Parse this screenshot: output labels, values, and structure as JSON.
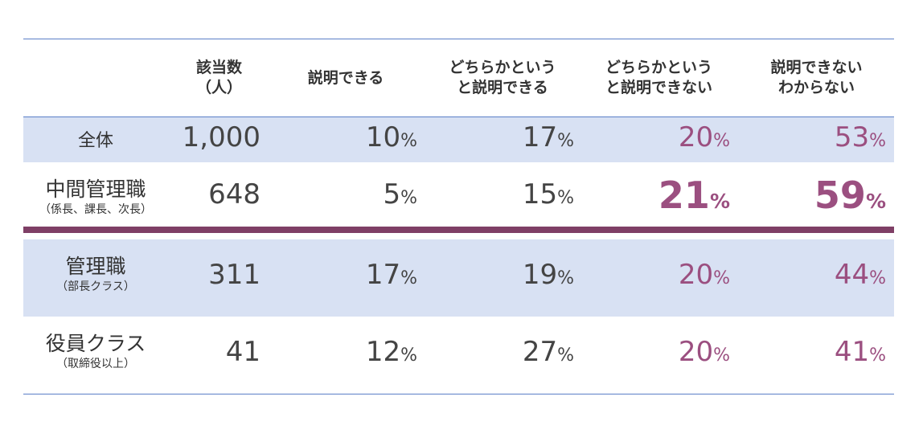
{
  "headers": {
    "count": [
      "該当数",
      "（人）"
    ],
    "col1": [
      "説明できる"
    ],
    "col2": [
      "どちらかというと説明できる"
    ],
    "col3": [
      "どちらかというと説明できない"
    ],
    "col4": [
      "説明できないわからない"
    ]
  },
  "percent_sign": "%",
  "rows": [
    {
      "label": "全体",
      "sub": "",
      "count": "1,000",
      "v1": "10",
      "v2": "17",
      "v3": "20",
      "v4": "53"
    },
    {
      "label": "中間管理職",
      "sub": "（係長、課長、次長）",
      "count": "648",
      "v1": "5",
      "v2": "15",
      "v3": "21",
      "v4": "59"
    },
    {
      "label": "管理職",
      "sub": "（部長クラス）",
      "count": "311",
      "v1": "17",
      "v2": "19",
      "v3": "20",
      "v4": "44"
    },
    {
      "label": "役員クラス",
      "sub": "（取締役以上）",
      "count": "41",
      "v1": "12",
      "v2": "27",
      "v3": "20",
      "v4": "41"
    }
  ],
  "colors": {
    "band": "#d8e1f3",
    "accent": "#9b4f80",
    "divider": "#7f3f66",
    "rule": "#5b7fc7"
  }
}
